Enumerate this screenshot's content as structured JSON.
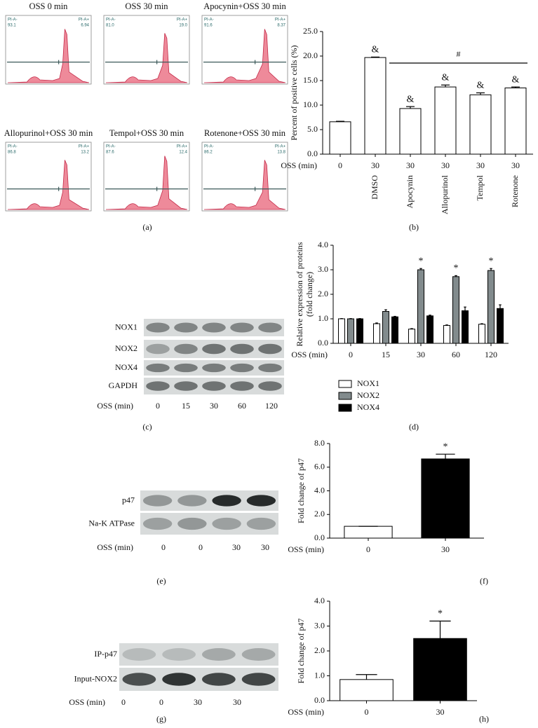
{
  "flow_panels": [
    {
      "title": "OSS 0 min",
      "gate_left": "PI-A-",
      "left_value": "93.1",
      "gate_right": "PI-A+",
      "right_value": "6.94"
    },
    {
      "title": "OSS 30 min",
      "gate_left": "PI-A-",
      "left_value": "81.0",
      "gate_right": "PI-A+",
      "right_value": "19.0"
    },
    {
      "title": "Apocynin+OSS 30 min",
      "gate_left": "PI-A-",
      "left_value": "91.6",
      "gate_right": "PI-A+",
      "right_value": "8.37"
    },
    {
      "title": "Allopurinol+OSS 30 min",
      "gate_left": "PI-A-",
      "left_value": "86.8",
      "gate_right": "PI-A+",
      "right_value": "13.2"
    },
    {
      "title": "Tempol+OSS 30 min",
      "gate_left": "PI-A-",
      "left_value": "87.6",
      "gate_right": "PI-A+",
      "right_value": "12.4"
    },
    {
      "title": "Rotenone+OSS 30 min",
      "gate_left": "PI-A-",
      "left_value": "86.2",
      "gate_right": "PI-A+",
      "right_value": "13.8"
    }
  ],
  "blots": [
    {
      "rows": [
        "NOX1",
        "NOX2",
        "NOX4",
        "GAPDH"
      ],
      "x_label": "OSS (min)",
      "lanes": [
        "0",
        "15",
        "30",
        "60",
        "120"
      ]
    },
    {
      "rows": [
        "p47",
        "Na-K ATPase"
      ],
      "x_label": "OSS (min)",
      "lanes": [
        "0",
        "0",
        "30",
        "30"
      ]
    },
    {
      "rows": [
        "IP-p47",
        "Input-NOX2"
      ],
      "x_label": "OSS (min)",
      "lanes": [
        "0",
        "0",
        "30",
        "30"
      ]
    }
  ],
  "panel_labels": [
    "(a)",
    "(b)",
    "(c)",
    "(d)",
    "(e)",
    "(f)",
    "(g)",
    "(h)"
  ],
  "chart_data": [
    {
      "type": "bar",
      "y_label": [
        "Percent of positive cells (%)"
      ],
      "x_label": "OSS (min)",
      "categories": [
        "0",
        "30",
        "30",
        "30",
        "30",
        "30"
      ],
      "treatments": [
        null,
        "DMSO",
        "Apocynin",
        "Allopurinol",
        "Tempol",
        "Rotenone"
      ],
      "values": [
        6.6,
        19.7,
        9.3,
        13.7,
        12.1,
        13.5
      ],
      "errors": [
        0.1,
        0.1,
        0.4,
        0.4,
        0.4,
        0.2
      ],
      "annotations": [
        null,
        "&",
        "&",
        "&",
        "&",
        "&"
      ],
      "bracket_label": "#",
      "color": "#ffffff",
      "ylim": [
        0,
        25
      ],
      "yticks": [
        {
          "value": 0,
          "label": "0.0"
        },
        {
          "value": 5,
          "label": "5.0"
        },
        {
          "value": 10,
          "label": "10.0"
        },
        {
          "value": 15,
          "label": "15.0"
        },
        {
          "value": 20,
          "label": "20.0"
        },
        {
          "value": 25,
          "label": "25.0"
        }
      ]
    },
    {
      "type": "grouped_bar",
      "y_label": [
        "Relative expression of proteins",
        "(fold change)"
      ],
      "x_label": "OSS (min)",
      "categories": [
        "0",
        "15",
        "30",
        "60",
        "120"
      ],
      "series": [
        {
          "name": "NOX1",
          "color": "#ffffff",
          "values": [
            1.0,
            0.8,
            0.58,
            0.73,
            0.78
          ],
          "errors": [
            0.01,
            0.03,
            0.02,
            0.02,
            0.02
          ],
          "annotations": [
            null,
            null,
            null,
            null,
            null
          ]
        },
        {
          "name": "NOX2",
          "color": "#828b8d",
          "values": [
            1.0,
            1.3,
            3.0,
            2.72,
            2.97
          ],
          "errors": [
            0.01,
            0.07,
            0.05,
            0.04,
            0.08
          ],
          "annotations": [
            null,
            null,
            "*",
            "*",
            "*"
          ]
        },
        {
          "name": "NOX4",
          "color": "#000000",
          "values": [
            1.0,
            1.08,
            1.12,
            1.33,
            1.42
          ],
          "errors": [
            0.01,
            0.02,
            0.03,
            0.15,
            0.15
          ],
          "annotations": [
            null,
            null,
            null,
            null,
            null
          ]
        }
      ],
      "ylim": [
        0,
        4
      ],
      "yticks": [
        {
          "value": 0,
          "label": "0.0"
        },
        {
          "value": 1,
          "label": "1.0"
        },
        {
          "value": 2,
          "label": "2.0"
        },
        {
          "value": 3,
          "label": "3.0"
        },
        {
          "value": 4,
          "label": "4.0"
        }
      ]
    },
    {
      "type": "bar",
      "y_label": [
        "Fold change of p47"
      ],
      "x_label": "OSS (min)",
      "categories": [
        "0",
        "30"
      ],
      "values": [
        1.0,
        6.7
      ],
      "errors": [
        0.0,
        0.4
      ],
      "annotations": [
        null,
        "*"
      ],
      "colors": [
        "#ffffff",
        "#000000"
      ],
      "ylim": [
        0,
        8
      ],
      "yticks": [
        {
          "value": 0,
          "label": "0.0"
        },
        {
          "value": 2,
          "label": "2.0"
        },
        {
          "value": 4,
          "label": "4.0"
        },
        {
          "value": 6,
          "label": "6.0"
        },
        {
          "value": 8,
          "label": "8.0"
        }
      ]
    },
    {
      "type": "bar",
      "y_label": [
        "Fold change of p47"
      ],
      "x_label": "OSS (min)",
      "categories": [
        "0",
        "30"
      ],
      "values": [
        0.85,
        2.5
      ],
      "errors": [
        0.2,
        0.7
      ],
      "annotations": [
        null,
        "*"
      ],
      "colors": [
        "#ffffff",
        "#000000"
      ],
      "ylim": [
        0,
        4
      ],
      "yticks": [
        {
          "value": 0,
          "label": "0.0"
        },
        {
          "value": 1,
          "label": "1.0"
        },
        {
          "value": 2,
          "label": "2.0"
        },
        {
          "value": 3,
          "label": "3.0"
        },
        {
          "value": 4,
          "label": "4.0"
        }
      ]
    }
  ]
}
